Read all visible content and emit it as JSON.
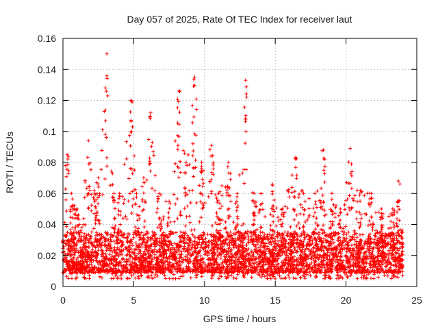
{
  "chart_data": {
    "type": "scatter",
    "title": "Day 057 of 2025, Rate Of TEC Index for receiver laut",
    "xlabel": "GPS time / hours",
    "ylabel": "ROTI / TECUs",
    "xlim": [
      0,
      25
    ],
    "ylim": [
      0,
      0.16
    ],
    "xticks": [
      0,
      5,
      10,
      15,
      20,
      25
    ],
    "xtick_labels": [
      "0",
      "5",
      "10",
      "15",
      "20",
      "25"
    ],
    "yticks": [
      0,
      0.02,
      0.04,
      0.06,
      0.08,
      0.1,
      0.12,
      0.14,
      0.16
    ],
    "ytick_labels": [
      "0",
      "0.02",
      "0.04",
      "0.06",
      "0.08",
      "0.1",
      "0.12",
      "0.14",
      "0.16"
    ],
    "grid": true,
    "marker": "plus",
    "marker_color": "#ff0000",
    "series": [
      {
        "name": "ROTI",
        "x_range": [
          0,
          24
        ],
        "typical_band": [
          0.005,
          0.04
        ],
        "envelope": [
          {
            "t": 0.0,
            "max": 0.03
          },
          {
            "t": 0.3,
            "max": 0.085
          },
          {
            "t": 0.6,
            "max": 0.06
          },
          {
            "t": 1.0,
            "max": 0.05
          },
          {
            "t": 1.8,
            "max": 0.094
          },
          {
            "t": 2.2,
            "max": 0.062
          },
          {
            "t": 2.5,
            "max": 0.07
          },
          {
            "t": 3.1,
            "max": 0.15
          },
          {
            "t": 3.6,
            "max": 0.06
          },
          {
            "t": 4.0,
            "max": 0.06
          },
          {
            "t": 4.8,
            "max": 0.12
          },
          {
            "t": 5.2,
            "max": 0.06
          },
          {
            "t": 5.7,
            "max": 0.07
          },
          {
            "t": 6.2,
            "max": 0.112
          },
          {
            "t": 6.8,
            "max": 0.06
          },
          {
            "t": 7.5,
            "max": 0.055
          },
          {
            "t": 8.2,
            "max": 0.126
          },
          {
            "t": 8.7,
            "max": 0.08
          },
          {
            "t": 9.3,
            "max": 0.135
          },
          {
            "t": 9.8,
            "max": 0.08
          },
          {
            "t": 10.5,
            "max": 0.091
          },
          {
            "t": 11.0,
            "max": 0.06
          },
          {
            "t": 11.7,
            "max": 0.08
          },
          {
            "t": 12.3,
            "max": 0.06
          },
          {
            "t": 12.9,
            "max": 0.133
          },
          {
            "t": 13.5,
            "max": 0.06
          },
          {
            "t": 14.0,
            "max": 0.06
          },
          {
            "t": 14.8,
            "max": 0.066
          },
          {
            "t": 15.5,
            "max": 0.05
          },
          {
            "t": 16.4,
            "max": 0.083
          },
          {
            "t": 17.0,
            "max": 0.06
          },
          {
            "t": 17.8,
            "max": 0.06
          },
          {
            "t": 18.4,
            "max": 0.088
          },
          {
            "t": 19.0,
            "max": 0.06
          },
          {
            "t": 19.6,
            "max": 0.05
          },
          {
            "t": 20.3,
            "max": 0.089
          },
          {
            "t": 21.0,
            "max": 0.062
          },
          {
            "t": 21.8,
            "max": 0.06
          },
          {
            "t": 22.5,
            "max": 0.05
          },
          {
            "t": 23.3,
            "max": 0.05
          },
          {
            "t": 23.7,
            "max": 0.068
          },
          {
            "t": 24.0,
            "max": 0.035
          }
        ]
      }
    ]
  }
}
